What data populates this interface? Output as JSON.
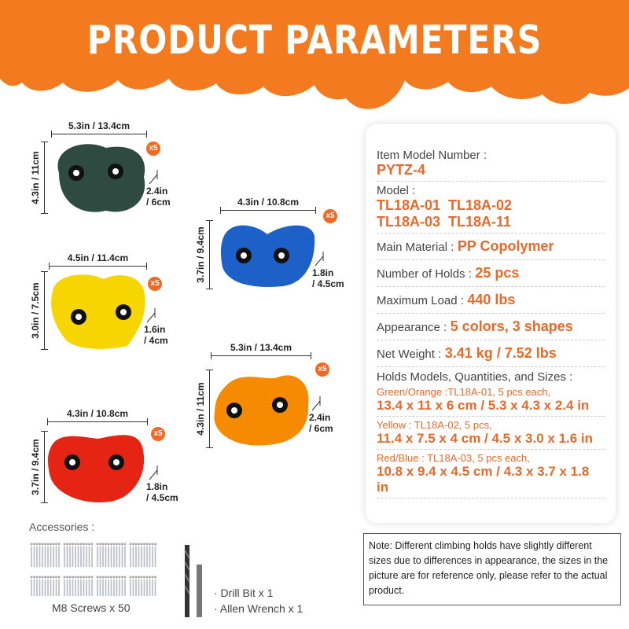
{
  "header": {
    "title": "PRODUCT PARAMETERS",
    "color": "#f47a20"
  },
  "holds": [
    {
      "color_name": "green",
      "color": "#2e4a41",
      "width": "5.3in / 13.4cm",
      "height": "4.3in / 11cm",
      "depth_in": "2.4in",
      "depth_cm": "/ 6cm",
      "qty": "x5"
    },
    {
      "color_name": "blue",
      "color": "#1c60c8",
      "width": "4.3in / 10.8cm",
      "height": "3.7in / 9.4cm",
      "depth_in": "1.8in",
      "depth_cm": "/ 4.5cm",
      "qty": "x5"
    },
    {
      "color_name": "yellow",
      "color": "#f6d500",
      "width": "4.5in / 11.4cm",
      "height": "3.0in / 7.5cm",
      "depth_in": "1.6in",
      "depth_cm": "/ 4cm",
      "qty": "x5"
    },
    {
      "color_name": "orange",
      "color": "#f68a00",
      "width": "5.3in / 13.4cm",
      "height": "4.3in / 11cm",
      "depth_in": "2.4in",
      "depth_cm": "/ 6cm",
      "qty": "x5"
    },
    {
      "color_name": "red",
      "color": "#e62414",
      "width": "4.3in / 10.8cm",
      "height": "3.7in / 9.4cm",
      "depth_in": "1.8in",
      "depth_cm": "/ 4.5cm",
      "qty": "x5"
    }
  ],
  "accessories": {
    "label": "Accessories :",
    "screws": "M8 Screws x 50",
    "drill": "· Drill Bit x 1",
    "wrench": "· Allen Wrench x 1"
  },
  "specs": {
    "model_number_label": "Item Model Number :",
    "model_number": "PYTZ-4",
    "model_label": "Model :",
    "models_line1": "TL18A-01  TL18A-02",
    "models_line2": "TL18A-03  TL18A-11",
    "material_label": "Main Material :",
    "material": "PP Copolymer",
    "holds_label": "Number of Holds :",
    "holds": "25 pcs",
    "load_label": "Maximum Load :",
    "load": "440 lbs",
    "appearance_label": "Appearance :",
    "appearance": "5 colors, 3 shapes",
    "weight_label": "Net Weight :",
    "weight": "3.41 kg / 7.52 lbs",
    "sizes_label": "Holds Models, Quantities, and Sizes :",
    "sizes": [
      {
        "desc": "Green/Orange :TL18A-01, 5 pcs each,",
        "size": "13.4 x 11 x 6 cm / 5.3 x 4.3 x 2.4 in"
      },
      {
        "desc": "Yellow : TL18A-02, 5 pcs,",
        "size": "11.4 x 7.5 x 4 cm / 4.5 x 3.0 x 1.6 in"
      },
      {
        "desc": "Red/Blue : TL18A-03, 5 pcs each,",
        "size": "10.8 x 9.4 x 4.5 cm / 4.3 x 3.7 x 1.8 in"
      }
    ]
  },
  "note": "Note: Different climbing holds have slightly different sizes due to differences in  appearance, the sizes in the picture are for reference only, please refer to the actual product."
}
